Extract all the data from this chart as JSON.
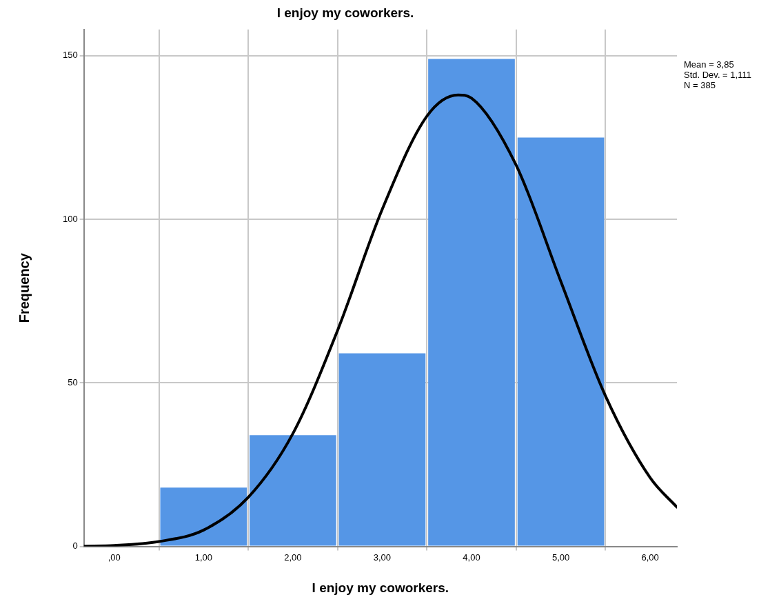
{
  "chart_data": {
    "type": "histogram",
    "title": "I enjoy my coworkers.",
    "xlabel": "I enjoy my coworkers.",
    "ylabel": "Frequency",
    "annotations": [
      "Mean = 3,85",
      "Std. Dev. = 1,111",
      "N = 385"
    ],
    "bins": [
      0.5,
      1.5,
      2.5,
      3.5,
      4.5,
      5.5
    ],
    "values": [
      18,
      34,
      59,
      149,
      125
    ],
    "color": "#5596e6",
    "series": [
      {
        "type": "line",
        "color": "#000000",
        "x": [
          -0.34,
          0,
          0.5,
          1,
          1.5,
          2,
          2.5,
          3,
          3.5,
          3.85,
          4,
          4.5,
          5,
          5.5,
          6,
          6.3
        ],
        "values": [
          0.1,
          0.3,
          1.5,
          5,
          15,
          34.5,
          66,
          103,
          131.5,
          138,
          137,
          116.5,
          81,
          46,
          21,
          12
        ]
      }
    ],
    "marker": "none",
    "line_style": "solid",
    "xlim": [
      -0.34,
      6.3
    ],
    "xticks": [
      {
        "value": 0,
        "label": ",00"
      },
      {
        "value": 1,
        "label": "1,00"
      },
      {
        "value": 2,
        "label": "2,00"
      },
      {
        "value": 3,
        "label": "3,00"
      },
      {
        "value": 4,
        "label": "4,00"
      },
      {
        "value": 5,
        "label": "5,00"
      },
      {
        "value": 6,
        "label": "6,00"
      }
    ],
    "ylim": [
      0,
      158
    ],
    "yticks": [
      0,
      50,
      100,
      150
    ],
    "grid": true,
    "legend": false
  }
}
